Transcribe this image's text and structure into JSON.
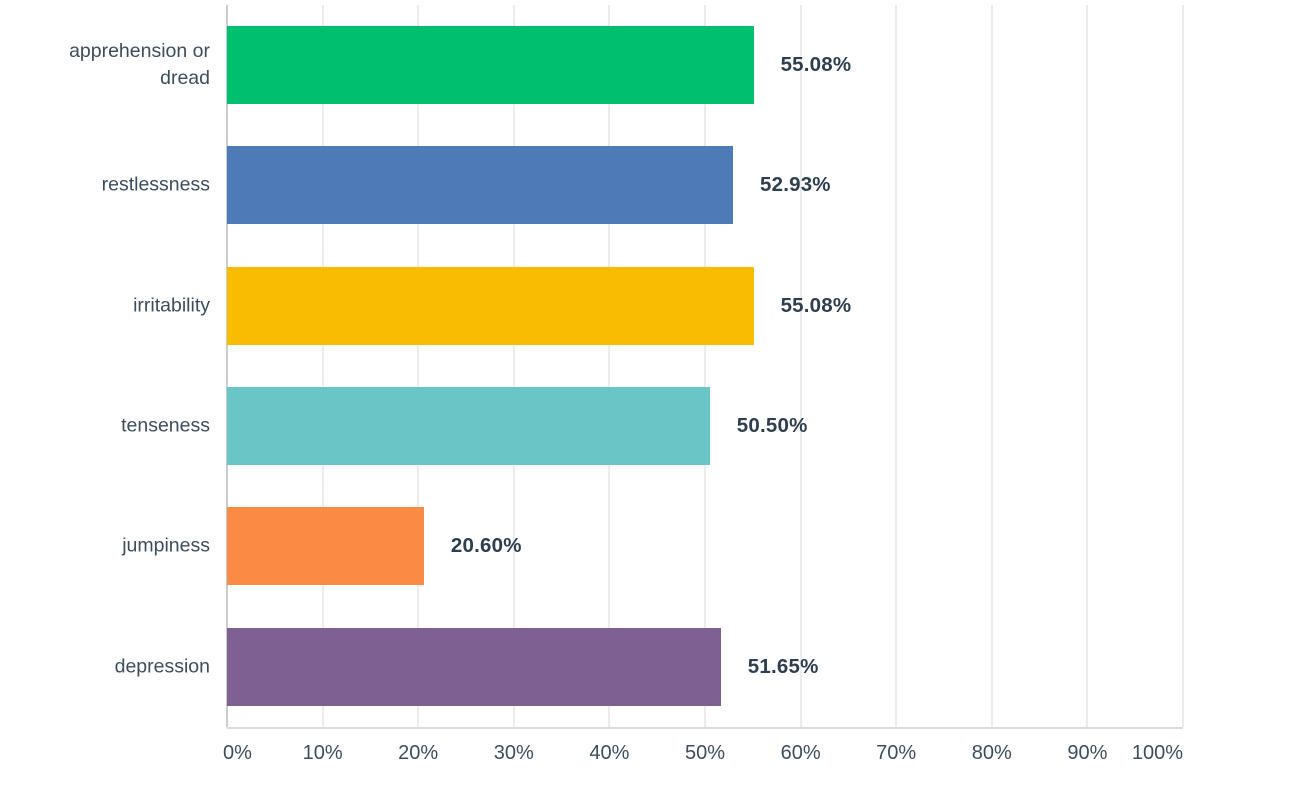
{
  "chart_data": {
    "type": "bar",
    "orientation": "horizontal",
    "title": "",
    "xlabel": "",
    "ylabel": "",
    "xlim": [
      0,
      100
    ],
    "grid": true,
    "categories": [
      "apprehension or dread",
      "restlessness",
      "irritability",
      "tenseness",
      "jumpiness",
      "depression"
    ],
    "values": [
      55.08,
      52.93,
      55.08,
      50.5,
      20.6,
      51.65
    ],
    "value_labels": [
      "55.08%",
      "52.93%",
      "55.08%",
      "50.50%",
      "20.60%",
      "51.65%"
    ],
    "bar_colors": [
      "#00bf6f",
      "#4e7ab8",
      "#f9bc00",
      "#6ac6c6",
      "#fb8a44",
      "#7e6093"
    ],
    "x_tick_labels": [
      "0%",
      "10%",
      "20%",
      "30%",
      "40%",
      "50%",
      "60%",
      "70%",
      "80%",
      "90%",
      "100%"
    ]
  },
  "styles": {
    "background": "#ffffff",
    "grid_color": "#ebecec",
    "zero_line_color": "#c9cdcf",
    "axis_line_color": "#d9dbdc",
    "category_label_color": "#3e4d5c",
    "value_label_color": "#2f3e4e",
    "tick_label_color": "#3e4d5c"
  }
}
